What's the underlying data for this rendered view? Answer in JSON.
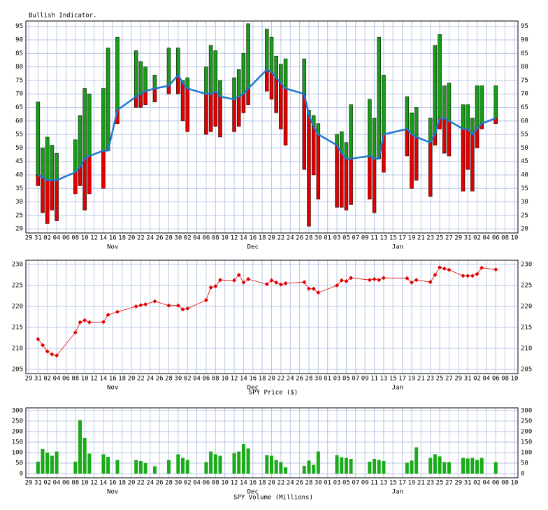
{
  "chart_data": [
    {
      "type": "range-bar",
      "title": "Bullish Indicator.",
      "grid": true,
      "xticks": [
        {
          "value": "Oct 29",
          "label": "29"
        },
        {
          "value": "Oct 31",
          "label": "31"
        },
        {
          "value": "Nov 02",
          "label": "02"
        },
        {
          "value": "Nov 04",
          "label": "04"
        },
        {
          "value": "Nov 06",
          "label": "06"
        },
        {
          "value": "Nov 08",
          "label": "08"
        },
        {
          "value": "Nov 10",
          "label": "10"
        },
        {
          "value": "Nov 12",
          "label": "12"
        },
        {
          "value": "Nov 14",
          "label": "14"
        },
        {
          "value": "Nov 16",
          "label": "16"
        },
        {
          "value": "Nov 18",
          "label": "18"
        },
        {
          "value": "Nov 20",
          "label": "20"
        },
        {
          "value": "Nov 22",
          "label": "22"
        },
        {
          "value": "Nov 24",
          "label": "24"
        },
        {
          "value": "Nov 26",
          "label": "26"
        },
        {
          "value": "Nov 28",
          "label": "28"
        },
        {
          "value": "Nov 30",
          "label": "30"
        },
        {
          "value": "Dec 02",
          "label": "02"
        },
        {
          "value": "Dec 04",
          "label": "04"
        },
        {
          "value": "Dec 06",
          "label": "06"
        },
        {
          "value": "Dec 08",
          "label": "08"
        },
        {
          "value": "Dec 10",
          "label": "10"
        },
        {
          "value": "Dec 12",
          "label": "12"
        },
        {
          "value": "Dec 14",
          "label": "14"
        },
        {
          "value": "Dec 16",
          "label": "16"
        },
        {
          "value": "Dec 18",
          "label": "18"
        },
        {
          "value": "Dec 20",
          "label": "20"
        },
        {
          "value": "Dec 22",
          "label": "22"
        },
        {
          "value": "Dec 24",
          "label": "24"
        },
        {
          "value": "Dec 26",
          "label": "26"
        },
        {
          "value": "Dec 28",
          "label": "28"
        },
        {
          "value": "Dec 30",
          "label": "30"
        },
        {
          "value": "Jan 01",
          "label": "01"
        },
        {
          "value": "Jan 03",
          "label": "03"
        },
        {
          "value": "Jan 05",
          "label": "05"
        },
        {
          "value": "Jan 07",
          "label": "07"
        },
        {
          "value": "Jan 09",
          "label": "09"
        },
        {
          "value": "Jan 11",
          "label": "11"
        },
        {
          "value": "Jan 13",
          "label": "13"
        },
        {
          "value": "Jan 15",
          "label": "15"
        },
        {
          "value": "Jan 17",
          "label": "17"
        },
        {
          "value": "Jan 19",
          "label": "19"
        },
        {
          "value": "Jan 21",
          "label": "21"
        },
        {
          "value": "Jan 23",
          "label": "23"
        },
        {
          "value": "Jan 25",
          "label": "25"
        },
        {
          "value": "Jan 27",
          "label": "27"
        },
        {
          "value": "Jan 29",
          "label": "29"
        },
        {
          "value": "Jan 31",
          "label": "31"
        },
        {
          "value": "Feb 02",
          "label": "02"
        },
        {
          "value": "Feb 04",
          "label": "04"
        },
        {
          "value": "Feb 06",
          "label": "06"
        },
        {
          "value": "Feb 08",
          "label": "08"
        },
        {
          "value": "Feb 10",
          "label": "10"
        }
      ],
      "month_ticks": [
        {
          "value": "Nov 16",
          "label": "Nov"
        },
        {
          "value": "Dec 16",
          "label": "Dec"
        },
        {
          "value": "Jan 16",
          "label": "Jan"
        }
      ],
      "x": [
        "Oct 31",
        "Nov 01",
        "Nov 02",
        "Nov 03",
        "Nov 04",
        "Nov 08",
        "Nov 09",
        "Nov 10",
        "Nov 11",
        "Nov 14",
        "Nov 15",
        "Nov 17",
        "Nov 21",
        "Nov 22",
        "Nov 23",
        "Nov 25",
        "Nov 28",
        "Nov 30",
        "Dec 01",
        "Dec 02",
        "Dec 06",
        "Dec 07",
        "Dec 08",
        "Dec 09",
        "Dec 12",
        "Dec 13",
        "Dec 14",
        "Dec 15",
        "Dec 19",
        "Dec 20",
        "Dec 21",
        "Dec 22",
        "Dec 23",
        "Dec 27",
        "Dec 28",
        "Dec 29",
        "Dec 30",
        "Jan 03",
        "Jan 04",
        "Jan 05",
        "Jan 06",
        "Jan 10",
        "Jan 11",
        "Jan 12",
        "Jan 13",
        "Jan 18",
        "Jan 19",
        "Jan 20",
        "Jan 23",
        "Jan 24",
        "Jan 25",
        "Jan 26",
        "Jan 27",
        "Jan 30",
        "Jan 31",
        "Feb 01",
        "Feb 02",
        "Feb 03",
        "Feb 06"
      ],
      "values": [
        40,
        39,
        38,
        38,
        38,
        41,
        43,
        46,
        47,
        49,
        49,
        64,
        69,
        70,
        71,
        72,
        73,
        77,
        74,
        72,
        70,
        70,
        71,
        69,
        68,
        69,
        70,
        72,
        79,
        78,
        76,
        74,
        72,
        70,
        62,
        58,
        55,
        51,
        48,
        46,
        46,
        47,
        46,
        46,
        55,
        57,
        55,
        54,
        52,
        55,
        61,
        61,
        60,
        57,
        57,
        55,
        57,
        59,
        61
      ],
      "highs": [
        67,
        50,
        54,
        51,
        48,
        53,
        62,
        72,
        70,
        72,
        87,
        91,
        86,
        82,
        80,
        77,
        87,
        87,
        75,
        76,
        80,
        88,
        86,
        75,
        76,
        79,
        85,
        96,
        94,
        91,
        84,
        81,
        83,
        83,
        64,
        62,
        59,
        55,
        56,
        52,
        66,
        68,
        61,
        91,
        77,
        69,
        63,
        65,
        61,
        88,
        92,
        73,
        74,
        66,
        66,
        61,
        73,
        73,
        73
      ],
      "lows": [
        36,
        26,
        22,
        27,
        23,
        33,
        36,
        27,
        33,
        35,
        49,
        59,
        65,
        65,
        66,
        67,
        70,
        70,
        60,
        56,
        55,
        56,
        58,
        54,
        56,
        58,
        63,
        66,
        71,
        68,
        63,
        57,
        51,
        42,
        21,
        40,
        31,
        28,
        28,
        27,
        29,
        31,
        26,
        46,
        41,
        47,
        35,
        38,
        32,
        51,
        57,
        48,
        47,
        34,
        42,
        34,
        50,
        57,
        59
      ],
      "line_color": "#1e78d0",
      "up_color": "#1a9a1a",
      "down_color": "#e00000",
      "ylim": [
        18.5,
        97
      ],
      "yticks": [
        20,
        25,
        30,
        35,
        40,
        45,
        50,
        55,
        60,
        65,
        70,
        75,
        80,
        85,
        90,
        95
      ]
    },
    {
      "type": "line",
      "x_label": "SPY Price ($)",
      "grid": true,
      "color": "#e00000",
      "x": [
        "Oct 31",
        "Nov 01",
        "Nov 02",
        "Nov 03",
        "Nov 04",
        "Nov 08",
        "Nov 09",
        "Nov 10",
        "Nov 11",
        "Nov 14",
        "Nov 15",
        "Nov 17",
        "Nov 21",
        "Nov 22",
        "Nov 23",
        "Nov 25",
        "Nov 28",
        "Nov 30",
        "Dec 01",
        "Dec 02",
        "Dec 06",
        "Dec 07",
        "Dec 08",
        "Dec 09",
        "Dec 12",
        "Dec 13",
        "Dec 14",
        "Dec 15",
        "Dec 19",
        "Dec 20",
        "Dec 21",
        "Dec 22",
        "Dec 23",
        "Dec 27",
        "Dec 28",
        "Dec 29",
        "Dec 30",
        "Jan 03",
        "Jan 04",
        "Jan 05",
        "Jan 06",
        "Jan 10",
        "Jan 11",
        "Jan 12",
        "Jan 13",
        "Jan 18",
        "Jan 19",
        "Jan 20",
        "Jan 23",
        "Jan 24",
        "Jan 25",
        "Jan 26",
        "Jan 27",
        "Jan 30",
        "Jan 31",
        "Feb 01",
        "Feb 02",
        "Feb 03",
        "Feb 06"
      ],
      "values": [
        212.2,
        210.8,
        209.3,
        208.6,
        208.3,
        213.8,
        216.2,
        216.7,
        216.2,
        216.3,
        218.0,
        218.7,
        220.0,
        220.3,
        220.5,
        221.2,
        220.2,
        220.2,
        219.3,
        219.5,
        221.5,
        224.5,
        224.8,
        226.3,
        226.2,
        227.5,
        225.7,
        226.5,
        225.3,
        226.2,
        225.7,
        225.2,
        225.5,
        225.8,
        224.2,
        224.2,
        223.3,
        225.0,
        226.2,
        226.0,
        226.8,
        226.3,
        226.5,
        226.3,
        226.8,
        226.7,
        225.7,
        226.3,
        225.8,
        227.5,
        229.3,
        229.0,
        228.7,
        227.3,
        227.3,
        227.3,
        227.7,
        229.2,
        228.8
      ],
      "ylim": [
        204,
        231
      ],
      "yticks": [
        205,
        210,
        215,
        220,
        225,
        230
      ]
    },
    {
      "type": "bar",
      "x_label": "SPY Volume (Millions)",
      "grid": true,
      "color": "#1aaa1a",
      "x": [
        "Oct 31",
        "Nov 01",
        "Nov 02",
        "Nov 03",
        "Nov 04",
        "Nov 08",
        "Nov 09",
        "Nov 10",
        "Nov 11",
        "Nov 14",
        "Nov 15",
        "Nov 17",
        "Nov 21",
        "Nov 22",
        "Nov 23",
        "Nov 25",
        "Nov 28",
        "Nov 30",
        "Dec 01",
        "Dec 02",
        "Dec 06",
        "Dec 07",
        "Dec 08",
        "Dec 09",
        "Dec 12",
        "Dec 13",
        "Dec 14",
        "Dec 15",
        "Dec 19",
        "Dec 20",
        "Dec 21",
        "Dec 22",
        "Dec 23",
        "Dec 27",
        "Dec 28",
        "Dec 29",
        "Dec 30",
        "Jan 03",
        "Jan 04",
        "Jan 05",
        "Jan 06",
        "Jan 10",
        "Jan 11",
        "Jan 12",
        "Jan 13",
        "Jan 18",
        "Jan 19",
        "Jan 20",
        "Jan 23",
        "Jan 24",
        "Jan 25",
        "Jan 26",
        "Jan 27",
        "Jan 30",
        "Jan 31",
        "Feb 01",
        "Feb 02",
        "Feb 03",
        "Feb 06"
      ],
      "values": [
        57,
        117,
        100,
        85,
        105,
        57,
        255,
        170,
        95,
        92,
        80,
        65,
        65,
        60,
        50,
        35,
        65,
        92,
        75,
        65,
        55,
        105,
        92,
        85,
        97,
        105,
        140,
        120,
        88,
        85,
        65,
        55,
        30,
        37,
        62,
        42,
        105,
        88,
        78,
        75,
        70,
        57,
        70,
        65,
        60,
        52,
        62,
        125,
        75,
        92,
        82,
        55,
        55,
        75,
        72,
        75,
        65,
        75,
        55
      ],
      "ylim": [
        -20,
        313
      ],
      "yticks": [
        0,
        50,
        100,
        150,
        200,
        250,
        300
      ]
    }
  ]
}
